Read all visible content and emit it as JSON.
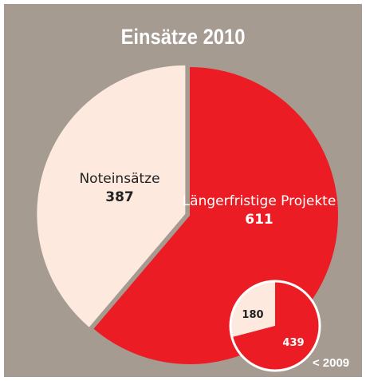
{
  "chart_data": [
    {
      "type": "pie",
      "title": "Einsätze 2010",
      "categories": [
        "Noteinsätze",
        "Längerfristige Projekte"
      ],
      "values": [
        387,
        611
      ],
      "colors": [
        "#fde9de",
        "#ec1c24"
      ]
    },
    {
      "type": "pie",
      "title": "< 2009",
      "values": [
        180,
        439
      ],
      "colors": [
        "#fde9de",
        "#ec1c24"
      ]
    }
  ]
}
